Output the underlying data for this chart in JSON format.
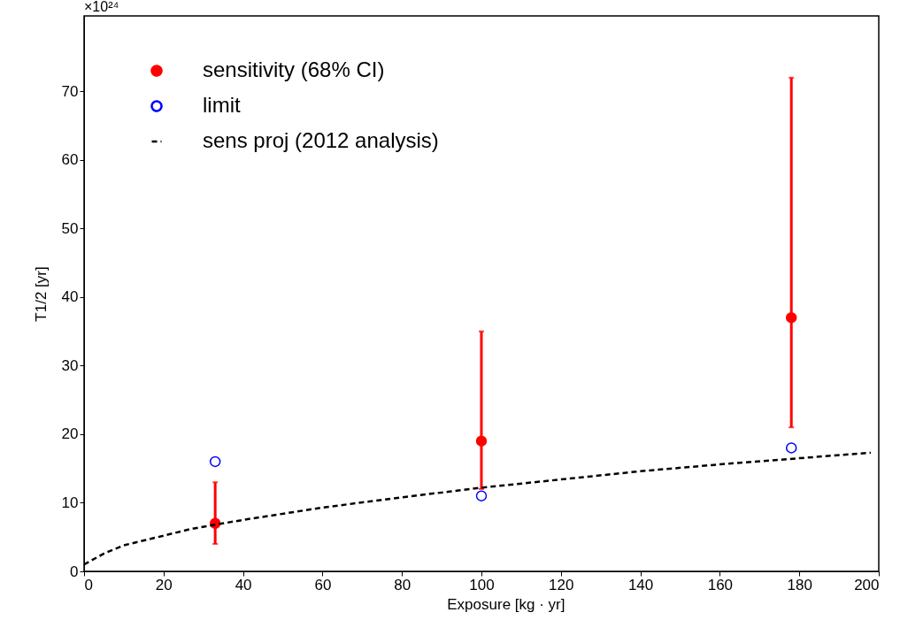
{
  "chart_data": {
    "type": "scatter",
    "xlabel": "Exposure [kg · yr]",
    "ylabel": "T1/2 [yr]",
    "annotations": [
      "×10²⁴"
    ],
    "xlim": [
      0,
      200
    ],
    "xticks": [
      0,
      20,
      40,
      60,
      80,
      100,
      120,
      140,
      160,
      180,
      200
    ],
    "ylim": [
      0,
      81
    ],
    "yticks": [
      0,
      10,
      20,
      30,
      40,
      50,
      60,
      70
    ],
    "grid": false,
    "legend": "top left",
    "series": [
      {
        "name": "sensitivity (68% CI)",
        "marker": "circle",
        "color": "#ff0000",
        "x": [
          33,
          100,
          178
        ],
        "values": [
          7,
          19,
          37
        ],
        "errors": [
          [
            4,
            13
          ],
          [
            12,
            35
          ],
          [
            21,
            72
          ]
        ]
      },
      {
        "name": "limit",
        "marker": "circle",
        "color": "#0000ff",
        "x": [
          33,
          100,
          178
        ],
        "values": [
          16,
          11,
          18
        ]
      },
      {
        "name": "sens proj (2012 analysis)",
        "type": "line",
        "line_style": "dashed",
        "marker": "none",
        "color": "#000000",
        "x": [
          0,
          5,
          10,
          20,
          27,
          40,
          60,
          80,
          100,
          120,
          140,
          160,
          180,
          198
        ],
        "values": [
          1,
          2.6,
          3.8,
          5.2,
          6.2,
          7.5,
          9.3,
          10.8,
          12.2,
          13.4,
          14.6,
          15.6,
          16.5,
          17.3
        ]
      }
    ]
  }
}
